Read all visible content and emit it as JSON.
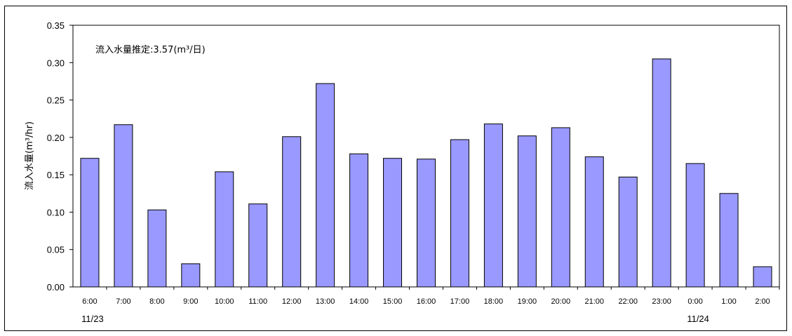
{
  "chart_data": {
    "type": "bar",
    "categories": [
      "6:00",
      "7:00",
      "8:00",
      "9:00",
      "10:00",
      "11:00",
      "12:00",
      "13:00",
      "14:00",
      "15:00",
      "16:00",
      "17:00",
      "18:00",
      "19:00",
      "20:00",
      "21:00",
      "22:00",
      "23:00",
      "0:00",
      "1:00",
      "2:00"
    ],
    "values": [
      0.172,
      0.217,
      0.103,
      0.031,
      0.154,
      0.111,
      0.201,
      0.272,
      0.178,
      0.172,
      0.171,
      0.197,
      0.218,
      0.202,
      0.213,
      0.174,
      0.147,
      0.305,
      0.165,
      0.125,
      0.027
    ],
    "ylabel": "流入水量(m³/hr)",
    "ylim": [
      0,
      0.35
    ],
    "yticks": [
      "0.00",
      "0.05",
      "0.10",
      "0.15",
      "0.20",
      "0.25",
      "0.30",
      "0.35"
    ],
    "annotation": "流入水量推定:3.57(m³/日)",
    "date_labels": [
      {
        "text": "11/23",
        "category_index": 0
      },
      {
        "text": "11/24",
        "category_index": 18
      }
    ],
    "bar_color": "#9999ff",
    "grid": false,
    "legend": "none"
  }
}
